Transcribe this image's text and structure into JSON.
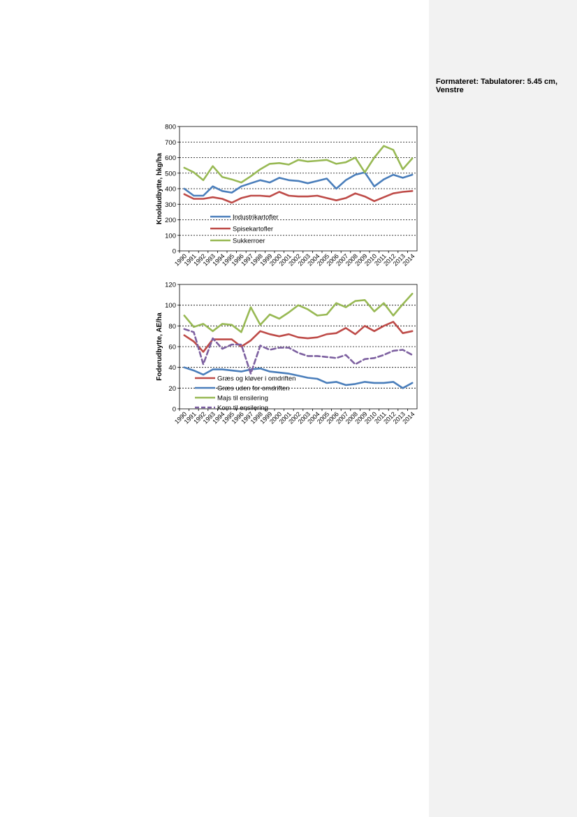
{
  "comment_panel": {
    "label": "Formateret: Tabulatorer: 5.45 cm, Venstre"
  },
  "colors": {
    "blue": "#4a7ebb",
    "red": "#be4b48",
    "green": "#98b954",
    "purple": "#7d60a0",
    "grid": "#000000"
  },
  "chart_data": [
    {
      "type": "line",
      "title": "",
      "xlabel": "",
      "ylabel": "Knoldudbytte, hkg/ha",
      "ylim": [
        0,
        800
      ],
      "yticks": [
        "0",
        "100",
        "200",
        "300",
        "400",
        "500",
        "600",
        "700",
        "800"
      ],
      "grid": "horizontal dashed",
      "legend_position": "inside-bottom-center",
      "categories": [
        "1990",
        "1991",
        "1992",
        "1993",
        "1994",
        "1995",
        "1996",
        "1997",
        "1998",
        "1999",
        "2000",
        "2001",
        "2002",
        "2003",
        "2004",
        "2005",
        "2006",
        "2007",
        "2008",
        "2009",
        "2010",
        "2011",
        "2012",
        "2013",
        "2014"
      ],
      "series": [
        {
          "name": "Industrikartofler",
          "color": "#4a7ebb",
          "dash": "solid",
          "values": [
            400,
            355,
            355,
            415,
            385,
            375,
            415,
            435,
            455,
            440,
            470,
            455,
            450,
            435,
            450,
            465,
            400,
            455,
            490,
            505,
            415,
            460,
            490,
            470,
            490
          ]
        },
        {
          "name": "Spisekartofler",
          "color": "#be4b48",
          "dash": "solid",
          "values": [
            365,
            335,
            335,
            345,
            335,
            310,
            340,
            355,
            355,
            350,
            380,
            355,
            350,
            350,
            355,
            340,
            325,
            340,
            370,
            350,
            320,
            345,
            370,
            380,
            385
          ]
        },
        {
          "name": "Sukkerroer",
          "color": "#98b954",
          "dash": "solid",
          "values": [
            535,
            505,
            455,
            545,
            475,
            460,
            440,
            480,
            525,
            560,
            565,
            555,
            585,
            575,
            580,
            585,
            560,
            570,
            600,
            505,
            600,
            675,
            650,
            525,
            595
          ]
        }
      ]
    },
    {
      "type": "line",
      "title": "",
      "xlabel": "",
      "ylabel": "Foderudbytte, AE/ha",
      "ylim": [
        0,
        120
      ],
      "yticks": [
        "0",
        "20",
        "40",
        "60",
        "80",
        "100",
        "120"
      ],
      "grid": "horizontal dashed",
      "legend_position": "inside-bottom-center",
      "categories": [
        "1990",
        "1991",
        "1992",
        "1993",
        "1994",
        "1995",
        "1996",
        "1997",
        "1998",
        "1999",
        "2000",
        "2001",
        "2002",
        "2003",
        "2004",
        "2005",
        "2006",
        "2007",
        "2008",
        "2009",
        "2010",
        "2011",
        "2012",
        "2013",
        "2014"
      ],
      "series": [
        {
          "name": "Græs og kløver i omdriften",
          "color": "#be4b48",
          "dash": "solid",
          "values": [
            71,
            65,
            55,
            67,
            67,
            67,
            60,
            66,
            75,
            72,
            70,
            72,
            69,
            68,
            69,
            72,
            73,
            78,
            72,
            80,
            75,
            80,
            84,
            73,
            75
          ]
        },
        {
          "name": "Græs uden for omdriften",
          "color": "#4a7ebb",
          "dash": "solid",
          "values": [
            40,
            37,
            33,
            38,
            38,
            37,
            36,
            38,
            39,
            36,
            35,
            34,
            32,
            30,
            29,
            25,
            26,
            23,
            24,
            26,
            25,
            25,
            26,
            20,
            25
          ]
        },
        {
          "name": "Majs til ensilering",
          "color": "#98b954",
          "dash": "solid",
          "values": [
            90,
            79,
            82,
            75,
            82,
            81,
            74,
            98,
            81,
            91,
            87,
            93,
            100,
            96,
            90,
            91,
            102,
            98,
            104,
            105,
            94,
            102,
            90,
            101,
            111
          ]
        },
        {
          "name": "Korn til ensilering",
          "color": "#7d60a0",
          "dash": "dash",
          "values": [
            77,
            74,
            43,
            68,
            58,
            62,
            62,
            34,
            61,
            57,
            59,
            59,
            54,
            51,
            51,
            50,
            49,
            52,
            43,
            48,
            49,
            52,
            56,
            57,
            52
          ]
        }
      ]
    }
  ]
}
